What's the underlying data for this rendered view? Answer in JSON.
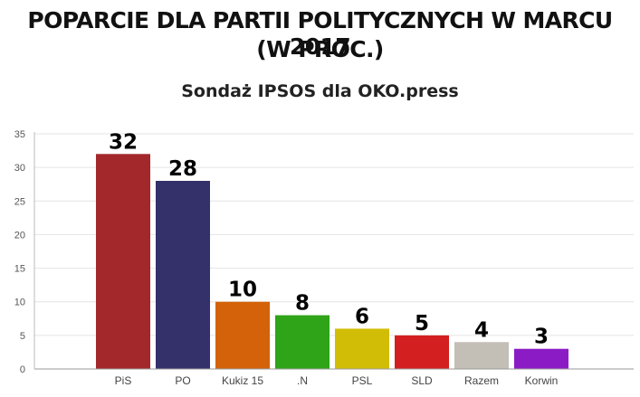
{
  "header": {
    "title_line1": "POPARCIE DLA PARTII POLITYCZNYCH W MARCU 2017",
    "title_line2": "(W PROC.)",
    "subtitle": "Sondaż IPSOS dla OKO.press"
  },
  "chart_data": {
    "type": "bar",
    "title": "POPARCIE DLA PARTII POLITYCZNYCH W MARCU 2017 (W PROC.)",
    "subtitle": "Sondaż IPSOS dla OKO.press",
    "categories": [
      "PiS",
      "PO",
      "Kukiz 15",
      ".N",
      "PSL",
      "SLD",
      "Razem",
      "Korwin"
    ],
    "values": [
      32,
      28,
      10,
      8,
      6,
      5,
      4,
      3
    ],
    "data_labels": [
      "32",
      "28",
      "10",
      "8",
      "6",
      "5",
      "4",
      "3"
    ],
    "colors": [
      "#a3282c",
      "#34306a",
      "#d3620a",
      "#2fa418",
      "#d2bd06",
      "#d31f1f",
      "#c3beb6",
      "#8b1cc5"
    ],
    "xlabel": "",
    "ylabel": "",
    "ylim": [
      0,
      35
    ],
    "yticks": [
      0,
      5,
      10,
      15,
      20,
      25,
      30,
      35
    ],
    "grid": true,
    "legend": "none"
  }
}
